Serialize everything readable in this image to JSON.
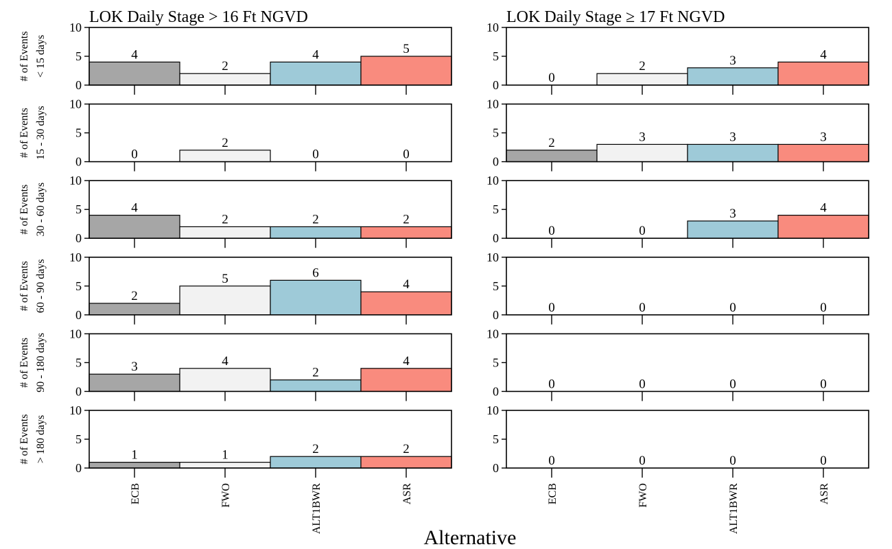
{
  "chart_data": {
    "type": "bar",
    "xlabel": "Alternative",
    "ylabel": "# of Events",
    "ylim": [
      0,
      10
    ],
    "yticks": [
      0,
      5,
      10
    ],
    "categories": [
      "ECB",
      "FWO",
      "ALT1BWR",
      "ASR"
    ],
    "colors": [
      "#a6a6a6",
      "#f2f2f2",
      "#9ecad8",
      "#f98b7e"
    ],
    "grid": false,
    "columns": [
      {
        "title": "LOK Daily Stage > 16 Ft NGVD"
      },
      {
        "title": "LOK Daily Stage ≥ 17 Ft NGVD"
      }
    ],
    "rows": [
      {
        "duration": "< 15 days",
        "values": [
          [
            4,
            2,
            4,
            5
          ],
          [
            0,
            2,
            3,
            4
          ]
        ]
      },
      {
        "duration": "15 - 30 days",
        "values": [
          [
            0,
            2,
            0,
            0
          ],
          [
            2,
            3,
            3,
            3
          ]
        ]
      },
      {
        "duration": "30 - 60 days",
        "values": [
          [
            4,
            2,
            2,
            2
          ],
          [
            0,
            0,
            3,
            4
          ]
        ]
      },
      {
        "duration": "60 - 90 days",
        "values": [
          [
            2,
            5,
            6,
            4
          ],
          [
            0,
            0,
            0,
            0
          ]
        ]
      },
      {
        "duration": "90 - 180 days",
        "values": [
          [
            3,
            4,
            2,
            4
          ],
          [
            0,
            0,
            0,
            0
          ]
        ]
      },
      {
        "duration": "> 180 days",
        "values": [
          [
            1,
            1,
            2,
            2
          ],
          [
            0,
            0,
            0,
            0
          ]
        ]
      }
    ]
  }
}
